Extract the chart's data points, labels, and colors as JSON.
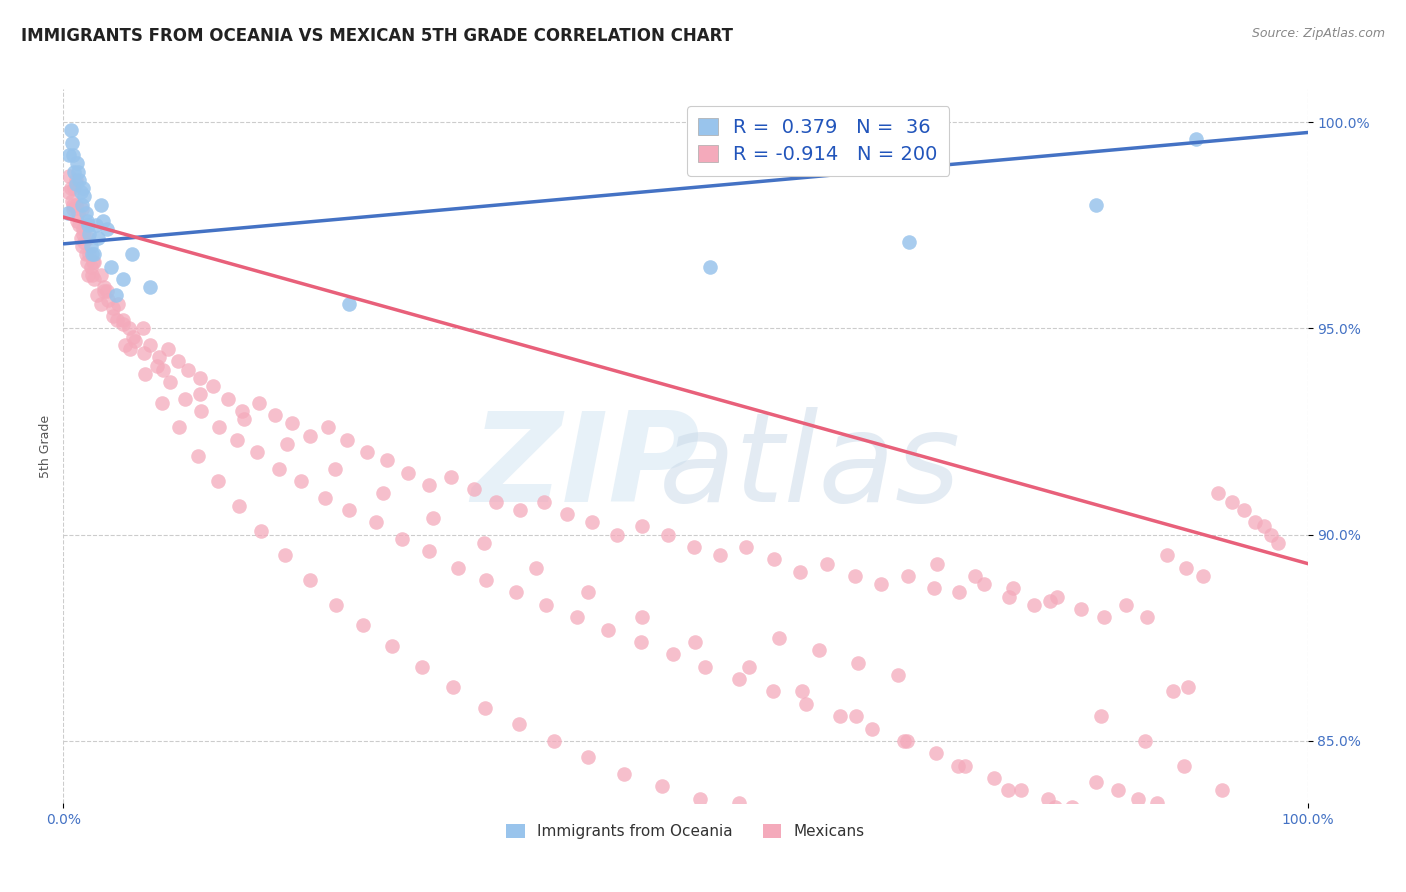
{
  "title": "IMMIGRANTS FROM OCEANIA VS MEXICAN 5TH GRADE CORRELATION CHART",
  "source_text": "Source: ZipAtlas.com",
  "ylabel": "5th Grade",
  "xlim": [
    0.0,
    1.0
  ],
  "ylim": [
    0.835,
    1.008
  ],
  "x_tick_labels": [
    "0.0%",
    "100.0%"
  ],
  "x_tick_values": [
    0.0,
    1.0
  ],
  "y_tick_labels": [
    "85.0%",
    "90.0%",
    "95.0%",
    "100.0%"
  ],
  "y_tick_values": [
    0.85,
    0.9,
    0.95,
    1.0
  ],
  "legend_label_blue": "Immigrants from Oceania",
  "legend_label_pink": "Mexicans",
  "r_blue": "0.379",
  "n_blue": "36",
  "r_pink": "-0.914",
  "n_pink": "200",
  "blue_marker_color": "#99C4EC",
  "pink_marker_color": "#F4AABB",
  "blue_line_color": "#4472C4",
  "pink_line_color": "#E8607A",
  "title_fontsize": 12,
  "axis_label_fontsize": 9,
  "tick_fontsize": 10,
  "tick_color": "#4472C4",
  "blue_line_start_x": 0.0,
  "blue_line_start_y": 0.9705,
  "blue_line_end_x": 1.0,
  "blue_line_end_y": 0.9975,
  "pink_line_start_x": 0.0,
  "pink_line_start_y": 0.977,
  "pink_line_end_x": 1.0,
  "pink_line_end_y": 0.893,
  "blue_x": [
    0.004,
    0.005,
    0.006,
    0.007,
    0.008,
    0.009,
    0.01,
    0.011,
    0.012,
    0.013,
    0.014,
    0.015,
    0.016,
    0.017,
    0.018,
    0.019,
    0.02,
    0.021,
    0.022,
    0.023,
    0.025,
    0.026,
    0.028,
    0.03,
    0.032,
    0.035,
    0.038,
    0.042,
    0.048,
    0.055,
    0.07,
    0.23,
    0.52,
    0.68,
    0.83,
    0.91
  ],
  "blue_y": [
    0.978,
    0.992,
    0.998,
    0.995,
    0.992,
    0.988,
    0.985,
    0.99,
    0.988,
    0.986,
    0.983,
    0.98,
    0.984,
    0.982,
    0.978,
    0.976,
    0.975,
    0.973,
    0.97,
    0.968,
    0.968,
    0.975,
    0.972,
    0.98,
    0.976,
    0.974,
    0.965,
    0.958,
    0.962,
    0.968,
    0.96,
    0.956,
    0.965,
    0.971,
    0.98,
    0.996
  ],
  "pink_x": [
    0.004,
    0.005,
    0.006,
    0.007,
    0.008,
    0.009,
    0.01,
    0.011,
    0.012,
    0.013,
    0.014,
    0.015,
    0.016,
    0.017,
    0.018,
    0.019,
    0.02,
    0.021,
    0.022,
    0.023,
    0.025,
    0.027,
    0.03,
    0.033,
    0.036,
    0.04,
    0.044,
    0.048,
    0.053,
    0.058,
    0.064,
    0.07,
    0.077,
    0.084,
    0.092,
    0.1,
    0.11,
    0.12,
    0.132,
    0.144,
    0.157,
    0.17,
    0.184,
    0.198,
    0.213,
    0.228,
    0.244,
    0.26,
    0.277,
    0.294,
    0.312,
    0.33,
    0.348,
    0.367,
    0.386,
    0.405,
    0.425,
    0.445,
    0.465,
    0.486,
    0.507,
    0.528,
    0.549,
    0.571,
    0.592,
    0.614,
    0.636,
    0.657,
    0.679,
    0.7,
    0.72,
    0.74,
    0.76,
    0.78,
    0.799,
    0.818,
    0.836,
    0.854,
    0.871,
    0.887,
    0.902,
    0.916,
    0.928,
    0.939,
    0.949,
    0.958,
    0.965,
    0.971,
    0.976,
    0.01,
    0.015,
    0.02,
    0.025,
    0.03,
    0.035,
    0.04,
    0.048,
    0.056,
    0.065,
    0.075,
    0.086,
    0.098,
    0.111,
    0.125,
    0.14,
    0.156,
    0.173,
    0.191,
    0.21,
    0.23,
    0.251,
    0.272,
    0.294,
    0.317,
    0.34,
    0.364,
    0.388,
    0.413,
    0.438,
    0.464,
    0.49,
    0.516,
    0.543,
    0.57,
    0.597,
    0.624,
    0.65,
    0.676,
    0.701,
    0.725,
    0.748,
    0.77,
    0.791,
    0.811,
    0.83,
    0.848,
    0.864,
    0.879,
    0.892,
    0.904,
    0.05,
    0.08,
    0.11,
    0.145,
    0.18,
    0.218,
    0.257,
    0.297,
    0.338,
    0.38,
    0.422,
    0.465,
    0.508,
    0.551,
    0.594,
    0.637,
    0.678,
    0.719,
    0.759,
    0.797,
    0.834,
    0.869,
    0.901,
    0.931,
    0.008,
    0.016,
    0.024,
    0.033,
    0.043,
    0.054,
    0.066,
    0.079,
    0.093,
    0.108,
    0.124,
    0.141,
    0.159,
    0.178,
    0.198,
    0.219,
    0.241,
    0.264,
    0.288,
    0.313,
    0.339,
    0.366,
    0.394,
    0.422,
    0.451,
    0.481,
    0.512,
    0.543,
    0.575,
    0.607,
    0.639,
    0.671,
    0.702,
    0.733,
    0.763,
    0.793
  ],
  "pink_y": [
    0.983,
    0.987,
    0.984,
    0.981,
    0.979,
    0.984,
    0.98,
    0.976,
    0.978,
    0.975,
    0.972,
    0.97,
    0.974,
    0.971,
    0.968,
    0.966,
    0.963,
    0.968,
    0.965,
    0.963,
    0.962,
    0.958,
    0.956,
    0.96,
    0.957,
    0.953,
    0.956,
    0.952,
    0.95,
    0.947,
    0.95,
    0.946,
    0.943,
    0.945,
    0.942,
    0.94,
    0.938,
    0.936,
    0.933,
    0.93,
    0.932,
    0.929,
    0.927,
    0.924,
    0.926,
    0.923,
    0.92,
    0.918,
    0.915,
    0.912,
    0.914,
    0.911,
    0.908,
    0.906,
    0.908,
    0.905,
    0.903,
    0.9,
    0.902,
    0.9,
    0.897,
    0.895,
    0.897,
    0.894,
    0.891,
    0.893,
    0.89,
    0.888,
    0.89,
    0.887,
    0.886,
    0.888,
    0.885,
    0.883,
    0.885,
    0.882,
    0.88,
    0.883,
    0.88,
    0.895,
    0.892,
    0.89,
    0.91,
    0.908,
    0.906,
    0.903,
    0.902,
    0.9,
    0.898,
    0.986,
    0.979,
    0.972,
    0.966,
    0.963,
    0.959,
    0.955,
    0.951,
    0.948,
    0.944,
    0.941,
    0.937,
    0.933,
    0.93,
    0.926,
    0.923,
    0.92,
    0.916,
    0.913,
    0.909,
    0.906,
    0.903,
    0.899,
    0.896,
    0.892,
    0.889,
    0.886,
    0.883,
    0.88,
    0.877,
    0.874,
    0.871,
    0.868,
    0.865,
    0.862,
    0.859,
    0.856,
    0.853,
    0.85,
    0.847,
    0.844,
    0.841,
    0.838,
    0.836,
    0.834,
    0.84,
    0.838,
    0.836,
    0.835,
    0.862,
    0.863,
    0.946,
    0.94,
    0.934,
    0.928,
    0.922,
    0.916,
    0.91,
    0.904,
    0.898,
    0.892,
    0.886,
    0.88,
    0.874,
    0.868,
    0.862,
    0.856,
    0.85,
    0.844,
    0.838,
    0.834,
    0.856,
    0.85,
    0.844,
    0.838,
    0.98,
    0.973,
    0.966,
    0.959,
    0.952,
    0.945,
    0.939,
    0.932,
    0.926,
    0.919,
    0.913,
    0.907,
    0.901,
    0.895,
    0.889,
    0.883,
    0.878,
    0.873,
    0.868,
    0.863,
    0.858,
    0.854,
    0.85,
    0.846,
    0.842,
    0.839,
    0.836,
    0.835,
    0.875,
    0.872,
    0.869,
    0.866,
    0.893,
    0.89,
    0.887,
    0.884
  ]
}
